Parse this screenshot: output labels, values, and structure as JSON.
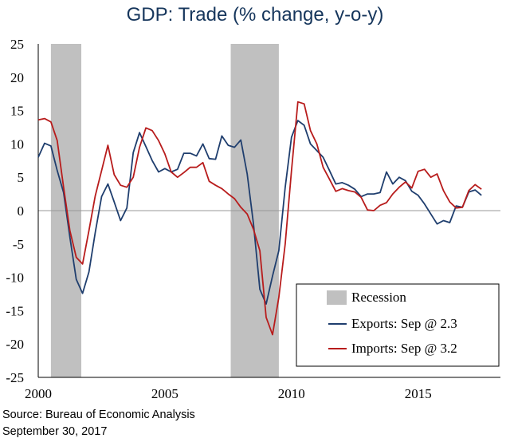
{
  "title": "GDP: Trade (% change, y-o-y)",
  "source": "Source: Bureau of Economic Analysis",
  "date": "September 30, 2017",
  "colors": {
    "exports": "#1f3e6e",
    "imports": "#b81c1c",
    "recession": "#c0c0c0",
    "zero_line": "#999999",
    "title": "#16365c"
  },
  "chart_data": {
    "type": "line",
    "title": "GDP: Trade (% change, y-o-y)",
    "xlim": [
      2000,
      2018.25
    ],
    "ylim": [
      -25,
      25
    ],
    "x_ticks": [
      2000,
      2005,
      2010,
      2015
    ],
    "y_ticks": [
      25,
      20,
      15,
      10,
      5,
      0,
      -5,
      -10,
      -15,
      -20,
      -25
    ],
    "grid": false,
    "legend_position": "bottom-right",
    "legend": [
      "Recession",
      "Exports: Sep @ 2.3",
      "Imports: Sep @ 3.2"
    ],
    "recessions": [
      {
        "start": 2000.5,
        "end": 2001.7
      },
      {
        "start": 2007.6,
        "end": 2009.5
      }
    ],
    "series": [
      {
        "name": "Exports: Sep @ 2.3",
        "x": [
          2000.0,
          2000.25,
          2000.5,
          2000.75,
          2001.0,
          2001.25,
          2001.5,
          2001.75,
          2002.0,
          2002.25,
          2002.5,
          2002.75,
          2003.0,
          2003.25,
          2003.5,
          2003.75,
          2004.0,
          2004.25,
          2004.5,
          2004.75,
          2005.0,
          2005.25,
          2005.5,
          2005.75,
          2006.0,
          2006.25,
          2006.5,
          2006.75,
          2007.0,
          2007.25,
          2007.5,
          2007.75,
          2008.0,
          2008.25,
          2008.5,
          2008.75,
          2009.0,
          2009.25,
          2009.5,
          2009.75,
          2010.0,
          2010.25,
          2010.5,
          2010.75,
          2011.0,
          2011.25,
          2011.5,
          2011.75,
          2012.0,
          2012.25,
          2012.5,
          2012.75,
          2013.0,
          2013.25,
          2013.5,
          2013.75,
          2014.0,
          2014.25,
          2014.5,
          2014.75,
          2015.0,
          2015.25,
          2015.5,
          2015.75,
          2016.0,
          2016.25,
          2016.5,
          2016.75,
          2017.0,
          2017.25,
          2017.5
        ],
        "values": [
          8.0,
          10.1,
          9.7,
          6.0,
          2.7,
          -4.0,
          -10.3,
          -12.4,
          -9.2,
          -3.3,
          2.1,
          4.0,
          1.3,
          -1.5,
          0.4,
          8.7,
          11.7,
          9.6,
          7.5,
          5.8,
          6.3,
          5.8,
          6.2,
          8.6,
          8.6,
          8.2,
          10.0,
          7.8,
          7.7,
          11.2,
          9.8,
          9.5,
          10.6,
          5.5,
          -2.0,
          -11.8,
          -14.0,
          -9.8,
          -6.0,
          3.5,
          11.0,
          13.5,
          12.8,
          10.0,
          9.0,
          8.0,
          6.0,
          4.0,
          4.2,
          3.8,
          3.2,
          2.1,
          2.5,
          2.5,
          2.7,
          5.8,
          4.0,
          5.0,
          4.5,
          2.9,
          2.3,
          1.0,
          -0.5,
          -2.0,
          -1.5,
          -1.8,
          0.7,
          0.5,
          2.8,
          3.1,
          2.3
        ]
      },
      {
        "name": "Imports: Sep @ 3.2",
        "x": [
          2000.0,
          2000.25,
          2000.5,
          2000.75,
          2001.0,
          2001.25,
          2001.5,
          2001.75,
          2002.0,
          2002.25,
          2002.5,
          2002.75,
          2003.0,
          2003.25,
          2003.5,
          2003.75,
          2004.0,
          2004.25,
          2004.5,
          2004.75,
          2005.0,
          2005.25,
          2005.5,
          2005.75,
          2006.0,
          2006.25,
          2006.5,
          2006.75,
          2007.0,
          2007.25,
          2007.5,
          2007.75,
          2008.0,
          2008.25,
          2008.5,
          2008.75,
          2009.0,
          2009.25,
          2009.5,
          2009.75,
          2010.0,
          2010.25,
          2010.5,
          2010.75,
          2011.0,
          2011.25,
          2011.5,
          2011.75,
          2012.0,
          2012.25,
          2012.5,
          2012.75,
          2013.0,
          2013.25,
          2013.5,
          2013.75,
          2014.0,
          2014.25,
          2014.5,
          2014.75,
          2015.0,
          2015.25,
          2015.5,
          2015.75,
          2016.0,
          2016.25,
          2016.5,
          2016.75,
          2017.0,
          2017.25,
          2017.5
        ],
        "values": [
          13.6,
          13.8,
          13.3,
          10.5,
          3.5,
          -3.0,
          -7.0,
          -8.0,
          -3.0,
          2.2,
          6.0,
          9.8,
          5.4,
          3.8,
          3.5,
          5.0,
          9.5,
          12.4,
          12.0,
          10.5,
          8.5,
          5.8,
          5.0,
          5.7,
          6.5,
          6.5,
          7.2,
          4.4,
          3.8,
          3.3,
          2.5,
          1.8,
          0.5,
          -0.5,
          -2.8,
          -6.0,
          -16.0,
          -18.6,
          -13.0,
          -5.0,
          6.0,
          16.3,
          16.0,
          12.0,
          10.0,
          6.5,
          4.7,
          2.9,
          3.3,
          3.0,
          2.8,
          2.0,
          0.1,
          0.0,
          0.8,
          1.2,
          2.5,
          3.5,
          4.3,
          3.4,
          5.9,
          6.2,
          5.0,
          5.5,
          3.0,
          1.3,
          0.4,
          0.5,
          3.0,
          3.9,
          3.2
        ]
      }
    ]
  }
}
